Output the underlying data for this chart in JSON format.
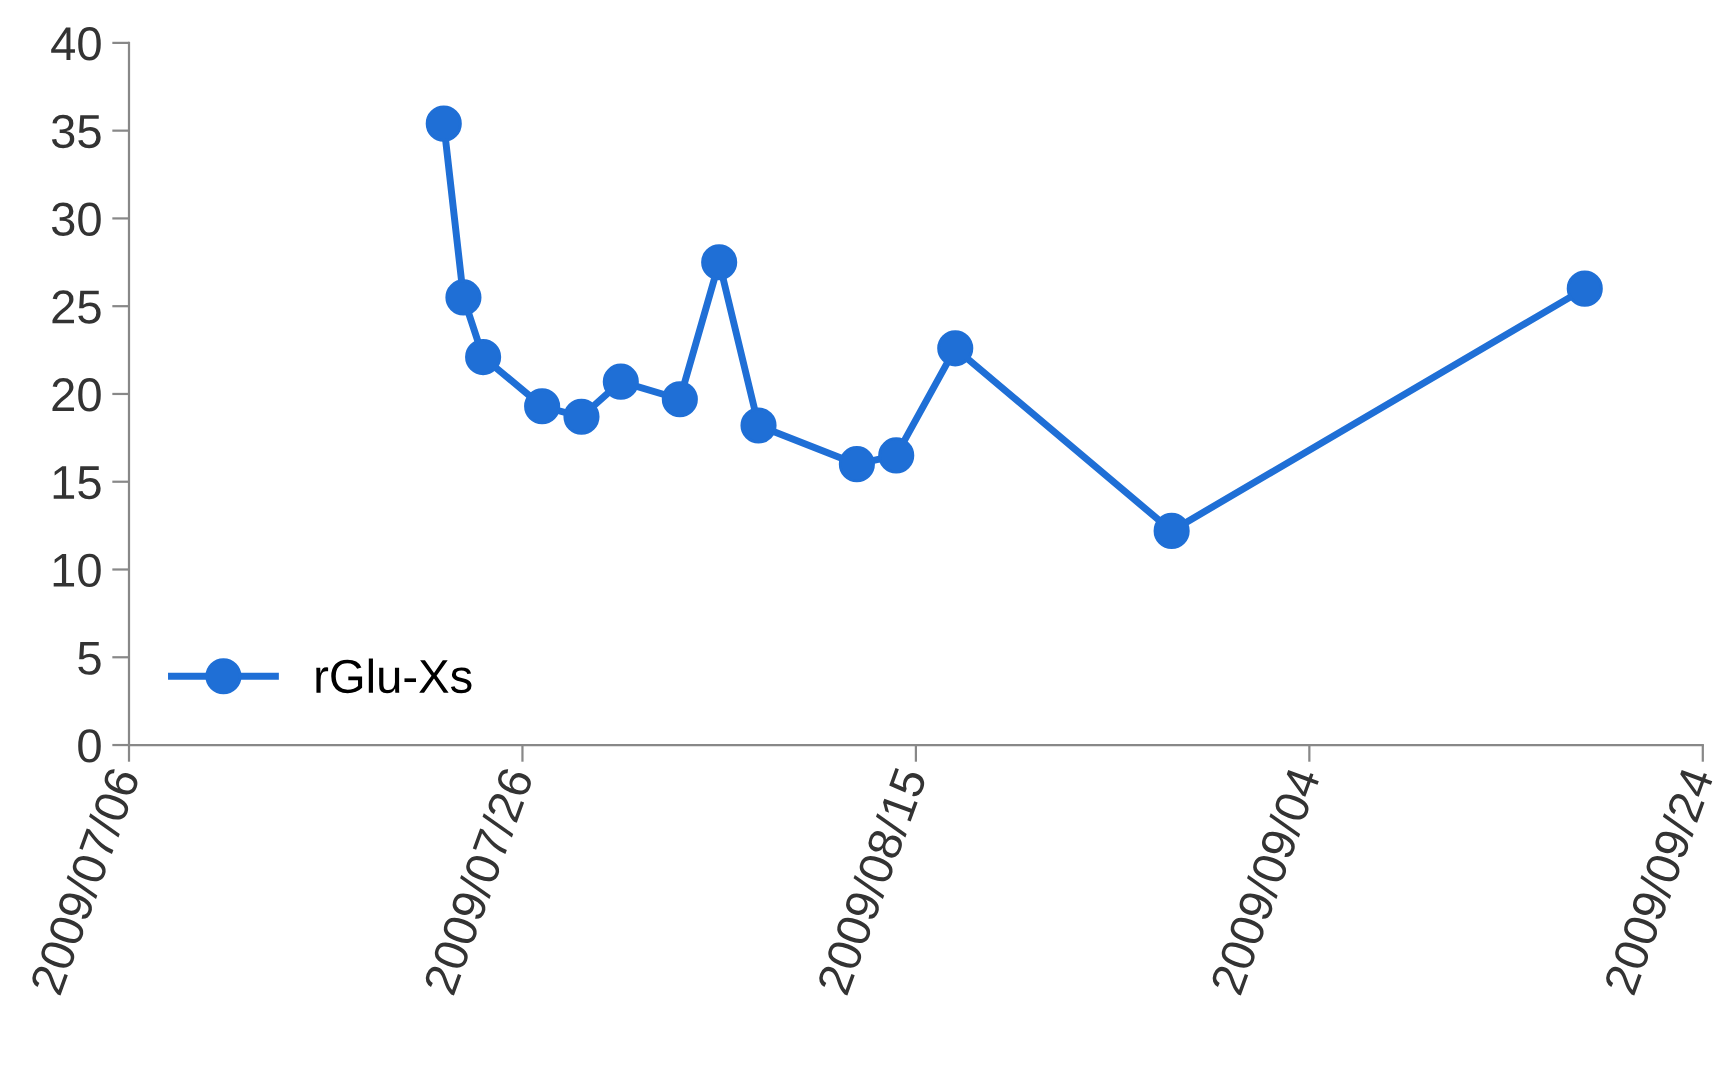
{
  "chart_data": {
    "type": "line",
    "x": [
      "2009-07-22",
      "2009-07-23",
      "2009-07-24",
      "2009-07-27",
      "2009-07-29",
      "2009-07-31",
      "2009-08-03",
      "2009-08-05",
      "2009-08-07",
      "2009-08-12",
      "2009-08-14",
      "2009-08-17",
      "2009-08-28",
      "2009-09-18"
    ],
    "series": [
      {
        "name": "rGlu-Xs",
        "color": "#1f6fd6",
        "values": [
          35.4,
          25.5,
          22.1,
          19.3,
          18.7,
          20.7,
          19.7,
          27.5,
          18.2,
          16.0,
          16.5,
          22.6,
          12.2,
          26.0
        ]
      }
    ],
    "xlim": [
      "2009-07-06",
      "2009-09-24"
    ],
    "xticks": [
      {
        "value": "2009-07-06",
        "label": "2009/07/06"
      },
      {
        "value": "2009-07-26",
        "label": "2009/07/26"
      },
      {
        "value": "2009-08-15",
        "label": "2009/08/15"
      },
      {
        "value": "2009-09-04",
        "label": "2009/09/04"
      },
      {
        "value": "2009-09-24",
        "label": "2009/09/24"
      }
    ],
    "ylim": [
      0,
      40
    ],
    "yticks": [
      0,
      5,
      10,
      15,
      20,
      25,
      30,
      35,
      40
    ],
    "grid": false,
    "legend": "lower left",
    "marker": "circle",
    "line_style": "solid"
  }
}
